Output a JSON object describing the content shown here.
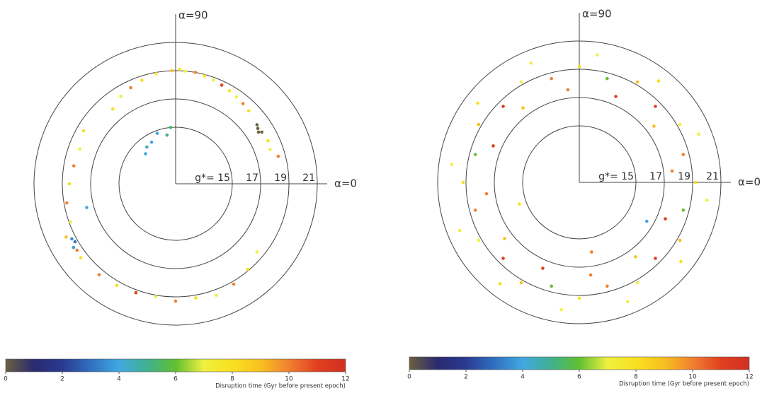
{
  "chart_data": [
    {
      "type": "polar-scatter",
      "rlim": [
        11,
        21
      ],
      "rticks": [
        {
          "value": 15,
          "label": "g*= 15"
        },
        17,
        19,
        21
      ],
      "theta_ticks": [
        {
          "value": 90,
          "label": "α=90"
        },
        {
          "value": 0,
          "label": "α=0"
        }
      ],
      "theta": [
        92,
        88,
        85,
        80,
        75,
        70,
        65,
        60,
        55,
        50,
        45,
        100,
        108,
        115,
        122,
        130,
        34,
        32,
        36,
        31,
        25,
        20,
        15,
        120,
        128,
        110,
        100,
        95,
        135,
        150,
        160,
        170,
        180,
        190,
        200,
        195,
        208,
        210,
        212,
        206,
        214,
        218,
        230,
        240,
        250,
        260,
        270,
        280,
        290,
        300,
        310,
        320
      ],
      "r": [
        19,
        19.1,
        19,
        19,
        18.9,
        18.8,
        18.7,
        18.6,
        18.5,
        18.4,
        18.3,
        18.9,
        18.7,
        18.5,
        18.3,
        17.9,
        18,
        17.9,
        18.1,
        18.1,
        18.2,
        18.1,
        18.5,
        14.4,
        14.3,
        14.8,
        14.5,
        15,
        14,
        18.5,
        18.2,
        18.3,
        18.5,
        18.8,
        18.9,
        17.5,
        19.3,
        19.2,
        19.5,
        19.6,
        19.4,
        19.5,
        19.4,
        19.3,
        19.2,
        19.1,
        19.3,
        19.2,
        19.4,
        19.2,
        18.9,
        18.5
      ],
      "time": [
        9,
        8,
        7,
        10,
        8,
        7,
        11,
        8,
        7,
        10,
        8,
        7,
        8,
        10,
        7,
        8,
        0,
        0,
        0,
        0,
        8,
        7,
        10,
        4,
        4.5,
        4,
        5,
        5.5,
        4,
        8,
        7,
        10,
        8,
        10,
        7,
        4,
        3.5,
        3,
        3.8,
        9,
        10,
        8,
        10,
        8,
        11,
        7,
        10,
        8,
        7,
        10,
        8,
        7
      ],
      "clim": [
        0,
        12
      ],
      "cticks": [
        0,
        2,
        4,
        6,
        8,
        10,
        12
      ],
      "clabel": "Disruption time (Gyr before present epoch)",
      "colormap": [
        "#6b6040",
        "#2a2a70",
        "#2a3a90",
        "#3070c0",
        "#40a8e0",
        "#40b090",
        "#60c030",
        "#f0f040",
        "#f8e020",
        "#f8c020",
        "#f08030",
        "#e04020",
        "#d03020"
      ]
    },
    {
      "type": "polar-scatter",
      "rlim": [
        11,
        21
      ],
      "rticks": [
        {
          "value": 15,
          "label": "g*= 15"
        },
        17,
        19,
        21
      ],
      "theta_ticks": [
        {
          "value": 90,
          "label": "α=90"
        },
        {
          "value": 0,
          "label": "α=0"
        }
      ],
      "theta": [
        0,
        15,
        30,
        45,
        60,
        75,
        90,
        105,
        120,
        135,
        150,
        165,
        180,
        195,
        210,
        225,
        240,
        255,
        270,
        285,
        300,
        315,
        330,
        345,
        7,
        22,
        37,
        52,
        67,
        82,
        97,
        112,
        127,
        142,
        157,
        172,
        187,
        202,
        217,
        232,
        247,
        262,
        277,
        292,
        307,
        322,
        337,
        352,
        200,
        280,
        330
      ],
      "r": [
        19.2,
        18.6,
        19.2,
        18.6,
        19.2,
        18.6,
        19.2,
        18.6,
        19.2,
        18.6,
        19.2,
        18.6,
        19.2,
        18.6,
        19.2,
        18.6,
        19.2,
        18.6,
        19.2,
        18.6,
        19.2,
        18.6,
        19.2,
        18.6,
        17.6,
        20.1,
        17.6,
        20.1,
        17.6,
        20.1,
        17.6,
        20.1,
        17.6,
        20.1,
        17.6,
        20.1,
        17.6,
        20.1,
        17.6,
        20.1,
        17.6,
        20.1,
        17.6,
        20.1,
        17.6,
        20.1,
        17.6,
        20.1,
        15.5,
        16,
        16.5
      ],
      "time": [
        8,
        10,
        7,
        11,
        9,
        6,
        8,
        10,
        7,
        11,
        9,
        6,
        8,
        10,
        7,
        11,
        9,
        6,
        8,
        10,
        7,
        11,
        9,
        6,
        10,
        7,
        9,
        8,
        11,
        7,
        10,
        7,
        9,
        8,
        11,
        7,
        10,
        7,
        9,
        8,
        11,
        7,
        10,
        7,
        9,
        8,
        11,
        7,
        8,
        10,
        4
      ],
      "clim": [
        0,
        12
      ],
      "cticks": [
        0,
        2,
        4,
        6,
        8,
        10,
        12
      ],
      "clabel": "Disruption time (Gyr before present epoch)",
      "colormap": [
        "#6b6040",
        "#2a2a70",
        "#2a3a90",
        "#3070c0",
        "#40a8e0",
        "#40b090",
        "#60c030",
        "#f0f040",
        "#f8e020",
        "#f8c020",
        "#f08030",
        "#e04020",
        "#d03020"
      ]
    }
  ]
}
